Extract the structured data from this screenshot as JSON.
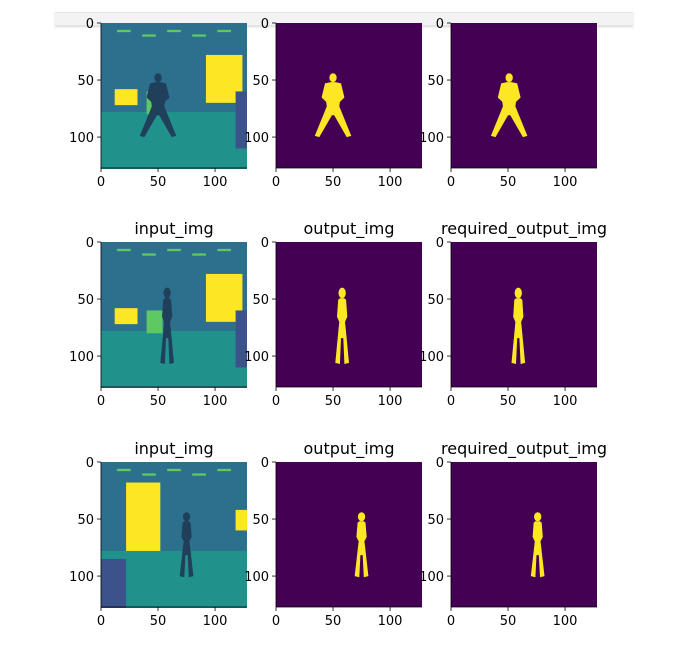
{
  "colors": {
    "background": "#440154",
    "foreground": "#fde725",
    "dark_scene": "#2d708e",
    "mid_scene": "#21918c",
    "light_scene": "#5ec962"
  },
  "chart_data": {
    "type": "heatmap",
    "colormap": "viridis",
    "rows": 3,
    "cols": 3,
    "image_size": [
      128,
      128
    ],
    "xlim": [
      0,
      128
    ],
    "ylim": [
      128,
      0
    ],
    "x_ticks": [
      "0",
      "50",
      "100"
    ],
    "y_ticks": [
      "0",
      "50",
      "100"
    ],
    "panel_titles": [
      "input_img",
      "output_img",
      "required_output_img"
    ],
    "title_rows_visible": [
      false,
      true,
      true
    ],
    "row_subjects": [
      {
        "subject_x": 50,
        "subject_top": 44,
        "subject_bottom": 100,
        "pose": "wide-stance"
      },
      {
        "subject_x": 58,
        "subject_top": 40,
        "subject_bottom": 107,
        "pose": "standing"
      },
      {
        "subject_x": 75,
        "subject_top": 44,
        "subject_bottom": 101,
        "pose": "standing"
      }
    ]
  }
}
